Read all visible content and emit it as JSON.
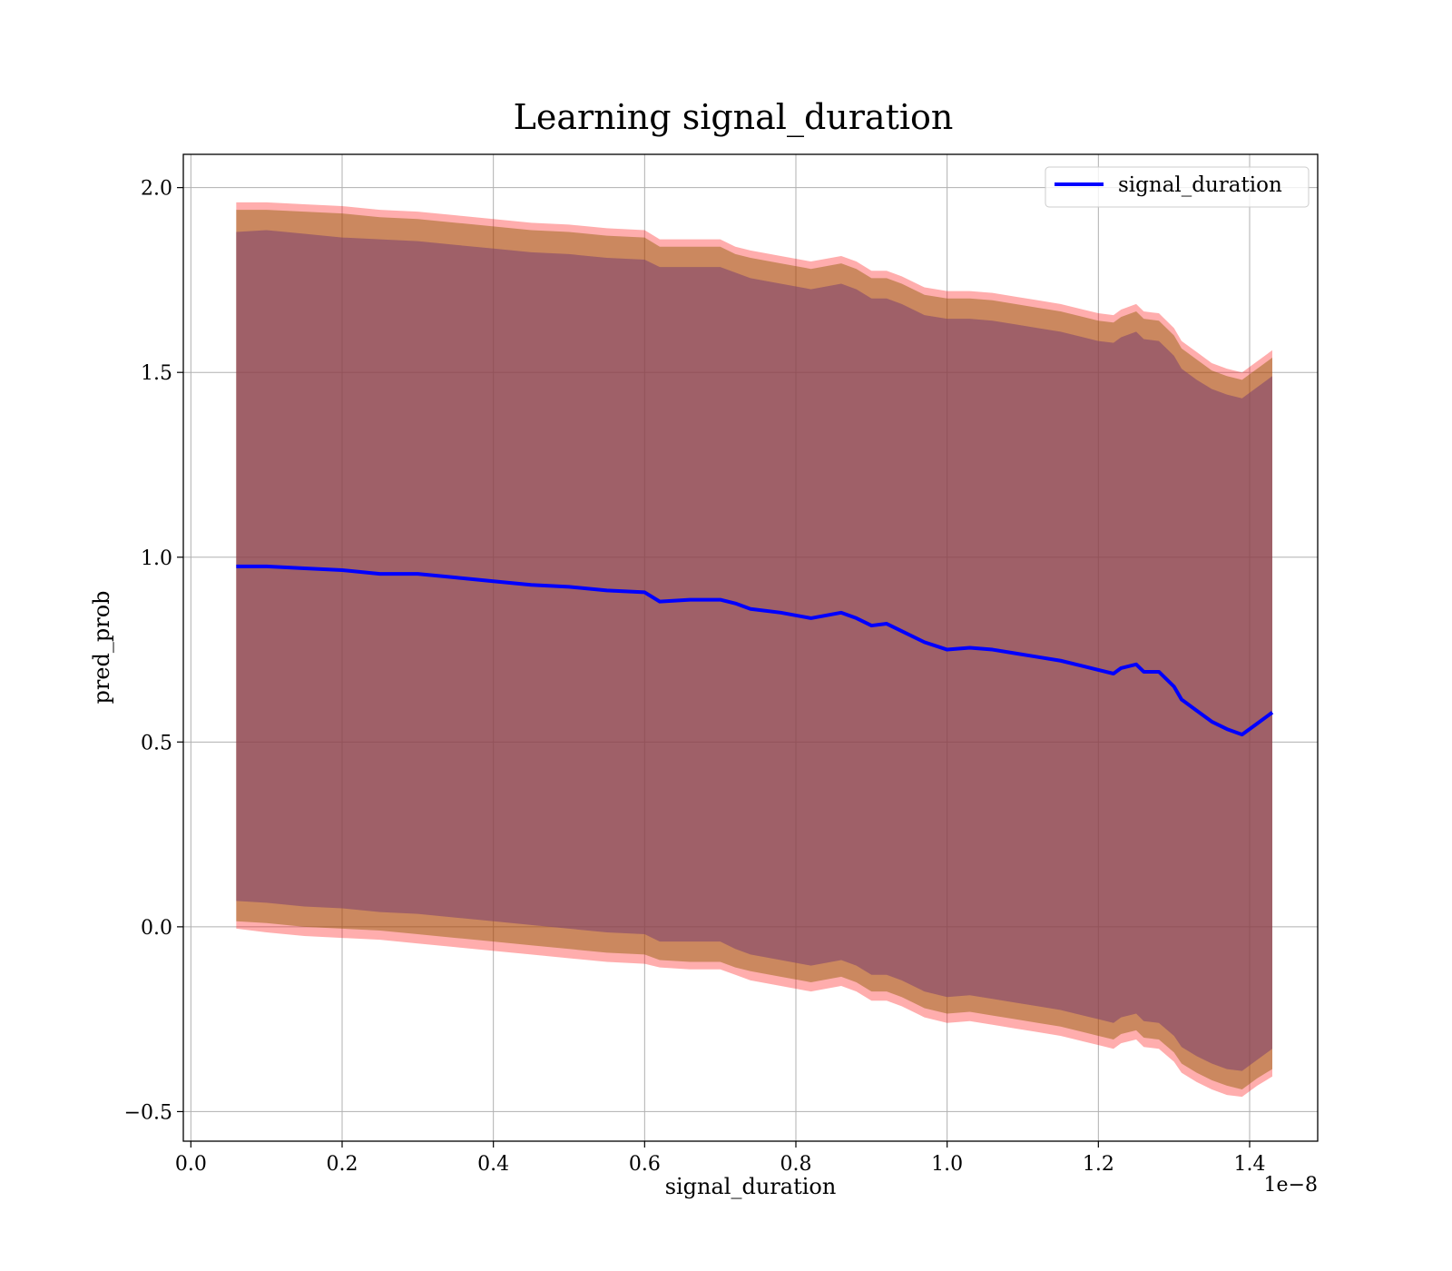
{
  "chart_data": {
    "type": "line",
    "title": "Learning signal_duration",
    "xlabel": "signal_duration",
    "ylabel": "pred_prob",
    "x_offset_label": "1e−8",
    "xlim": [
      -0.01,
      1.49
    ],
    "ylim": [
      -0.58,
      2.09
    ],
    "x_ticks": [
      0.0,
      0.2,
      0.4,
      0.6,
      0.8,
      1.0,
      1.2,
      1.4
    ],
    "x_tick_labels": [
      "0.0",
      "0.2",
      "0.4",
      "0.6",
      "0.8",
      "1.0",
      "1.2",
      "1.4"
    ],
    "y_ticks": [
      -0.5,
      0.0,
      0.5,
      1.0,
      1.5,
      2.0
    ],
    "y_tick_labels": [
      "−0.5",
      "0.0",
      "0.5",
      "1.0",
      "1.5",
      "2.0"
    ],
    "grid": true,
    "legend_position": "upper right",
    "x": [
      0.06,
      0.1,
      0.15,
      0.2,
      0.25,
      0.3,
      0.35,
      0.4,
      0.45,
      0.5,
      0.55,
      0.6,
      0.62,
      0.66,
      0.7,
      0.72,
      0.74,
      0.78,
      0.82,
      0.86,
      0.88,
      0.9,
      0.92,
      0.94,
      0.97,
      1.0,
      1.03,
      1.06,
      1.09,
      1.12,
      1.15,
      1.18,
      1.2,
      1.22,
      1.23,
      1.25,
      1.26,
      1.28,
      1.3,
      1.31,
      1.33,
      1.35,
      1.37,
      1.39,
      1.41,
      1.43
    ],
    "series": [
      {
        "name": "signal_duration",
        "color": "#0000ff",
        "y": [
          0.975,
          0.975,
          0.97,
          0.965,
          0.955,
          0.955,
          0.945,
          0.935,
          0.925,
          0.92,
          0.91,
          0.905,
          0.88,
          0.885,
          0.885,
          0.875,
          0.86,
          0.85,
          0.835,
          0.85,
          0.835,
          0.815,
          0.82,
          0.8,
          0.77,
          0.75,
          0.755,
          0.75,
          0.74,
          0.73,
          0.72,
          0.705,
          0.695,
          0.685,
          0.7,
          0.71,
          0.69,
          0.69,
          0.65,
          0.615,
          0.585,
          0.555,
          0.535,
          0.52,
          0.55,
          0.58
        ]
      }
    ],
    "band_outer_color": "#ff0000",
    "band_inner_color": "#8b5a00",
    "band_core_color": "#7b3f6f",
    "bands": [
      {
        "name": "outer-band",
        "lower": [
          -0.005,
          -0.015,
          -0.025,
          -0.03,
          -0.035,
          -0.045,
          -0.055,
          -0.065,
          -0.075,
          -0.085,
          -0.095,
          -0.1,
          -0.11,
          -0.115,
          -0.115,
          -0.13,
          -0.145,
          -0.16,
          -0.175,
          -0.16,
          -0.175,
          -0.2,
          -0.2,
          -0.215,
          -0.245,
          -0.26,
          -0.255,
          -0.265,
          -0.275,
          -0.285,
          -0.295,
          -0.31,
          -0.32,
          -0.33,
          -0.315,
          -0.305,
          -0.325,
          -0.33,
          -0.365,
          -0.395,
          -0.42,
          -0.44,
          -0.455,
          -0.46,
          -0.43,
          -0.405
        ],
        "upper": [
          1.96,
          1.96,
          1.955,
          1.95,
          1.94,
          1.935,
          1.925,
          1.915,
          1.905,
          1.9,
          1.89,
          1.885,
          1.86,
          1.86,
          1.86,
          1.84,
          1.83,
          1.815,
          1.8,
          1.815,
          1.8,
          1.775,
          1.775,
          1.76,
          1.73,
          1.72,
          1.72,
          1.715,
          1.705,
          1.695,
          1.685,
          1.67,
          1.66,
          1.655,
          1.67,
          1.685,
          1.665,
          1.66,
          1.62,
          1.585,
          1.555,
          1.525,
          1.51,
          1.5,
          1.53,
          1.56
        ]
      },
      {
        "name": "inner-band",
        "lower": [
          0.015,
          0.01,
          0.0,
          -0.005,
          -0.01,
          -0.02,
          -0.03,
          -0.04,
          -0.05,
          -0.06,
          -0.07,
          -0.075,
          -0.09,
          -0.095,
          -0.095,
          -0.11,
          -0.12,
          -0.135,
          -0.15,
          -0.135,
          -0.15,
          -0.175,
          -0.175,
          -0.19,
          -0.22,
          -0.235,
          -0.23,
          -0.24,
          -0.25,
          -0.26,
          -0.27,
          -0.285,
          -0.295,
          -0.305,
          -0.29,
          -0.28,
          -0.3,
          -0.305,
          -0.34,
          -0.37,
          -0.395,
          -0.415,
          -0.43,
          -0.44,
          -0.41,
          -0.385
        ],
        "upper": [
          1.94,
          1.94,
          1.935,
          1.93,
          1.92,
          1.915,
          1.905,
          1.895,
          1.885,
          1.88,
          1.87,
          1.865,
          1.84,
          1.84,
          1.84,
          1.82,
          1.81,
          1.795,
          1.78,
          1.795,
          1.78,
          1.755,
          1.755,
          1.74,
          1.71,
          1.7,
          1.7,
          1.695,
          1.685,
          1.675,
          1.665,
          1.65,
          1.64,
          1.635,
          1.65,
          1.665,
          1.645,
          1.64,
          1.6,
          1.565,
          1.535,
          1.505,
          1.49,
          1.48,
          1.51,
          1.54
        ]
      },
      {
        "name": "core-band",
        "lower": [
          0.07,
          0.065,
          0.055,
          0.05,
          0.04,
          0.035,
          0.025,
          0.015,
          0.005,
          -0.005,
          -0.015,
          -0.02,
          -0.04,
          -0.04,
          -0.04,
          -0.06,
          -0.075,
          -0.09,
          -0.105,
          -0.09,
          -0.105,
          -0.13,
          -0.13,
          -0.145,
          -0.175,
          -0.19,
          -0.185,
          -0.195,
          -0.205,
          -0.215,
          -0.225,
          -0.24,
          -0.25,
          -0.26,
          -0.245,
          -0.235,
          -0.255,
          -0.26,
          -0.295,
          -0.325,
          -0.35,
          -0.37,
          -0.385,
          -0.39,
          -0.36,
          -0.33
        ],
        "upper": [
          1.88,
          1.885,
          1.875,
          1.865,
          1.86,
          1.855,
          1.845,
          1.835,
          1.825,
          1.82,
          1.81,
          1.805,
          1.785,
          1.785,
          1.785,
          1.77,
          1.755,
          1.74,
          1.725,
          1.74,
          1.725,
          1.7,
          1.7,
          1.685,
          1.655,
          1.645,
          1.645,
          1.64,
          1.63,
          1.62,
          1.61,
          1.595,
          1.585,
          1.58,
          1.595,
          1.61,
          1.59,
          1.585,
          1.545,
          1.51,
          1.48,
          1.455,
          1.44,
          1.43,
          1.46,
          1.49
        ]
      }
    ]
  }
}
